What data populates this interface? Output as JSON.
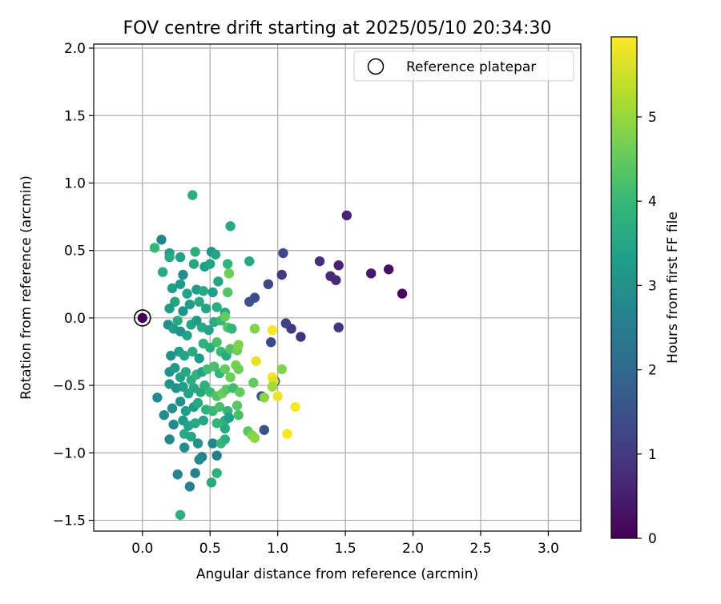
{
  "chart_data": {
    "type": "scatter",
    "title": "FOV centre drift starting at 2025/05/10 20:34:30",
    "xlabel": "Angular distance from reference (arcmin)",
    "ylabel": "Rotation from reference (arcmin)",
    "xlim": [
      -0.36,
      3.24
    ],
    "ylim": [
      -1.58,
      2.03
    ],
    "xticks": [
      0.0,
      0.5,
      1.0,
      1.5,
      2.0,
      2.5,
      3.0
    ],
    "xtick_labels": [
      "0.0",
      "0.5",
      "1.0",
      "1.5",
      "2.0",
      "2.5",
      "3.0"
    ],
    "yticks": [
      2.0,
      1.5,
      1.0,
      0.5,
      0.0,
      -0.5,
      -1.0,
      -1.5
    ],
    "ytick_labels": [
      "2.0",
      "1.5",
      "1.0",
      "0.5",
      "0.0",
      "−0.5",
      "−1.0",
      "−1.5"
    ],
    "grid": true,
    "legend": {
      "placement": "top-right",
      "entries": [
        "Reference platepar"
      ]
    },
    "reference_point": {
      "x": 0.0,
      "y": 0.0
    },
    "colorbar": {
      "label": "Hours from first FF file",
      "range": [
        0,
        5.95
      ],
      "ticks": [
        0,
        1,
        2,
        3,
        4,
        5
      ],
      "tick_labels": [
        "0",
        "1",
        "2",
        "3",
        "4",
        "5"
      ],
      "colormap": "viridis",
      "stops": [
        "#440154",
        "#482878",
        "#3e4a89",
        "#31688e",
        "#26828e",
        "#1f9e89",
        "#35b779",
        "#6ece58",
        "#b5de2b",
        "#fde725"
      ]
    },
    "colors": {
      "grid": "#b0b0b0",
      "axes": "#000000",
      "marker_edge": "#000000"
    },
    "series": [
      {
        "points": [
          [
            0.0,
            0.0,
            0.0
          ],
          [
            1.92,
            0.18,
            0.1
          ],
          [
            1.82,
            0.36,
            0.3
          ],
          [
            1.69,
            0.33,
            0.4
          ],
          [
            1.51,
            0.76,
            0.6
          ],
          [
            1.45,
            0.39,
            0.6
          ],
          [
            1.43,
            0.28,
            0.7
          ],
          [
            1.39,
            0.31,
            0.7
          ],
          [
            1.31,
            0.42,
            0.8
          ],
          [
            1.45,
            -0.07,
            0.9
          ],
          [
            1.17,
            -0.14,
            0.9
          ],
          [
            1.1,
            -0.08,
            1.0
          ],
          [
            1.06,
            -0.04,
            1.1
          ],
          [
            1.03,
            0.32,
            1.0
          ],
          [
            1.04,
            0.48,
            1.3
          ],
          [
            0.95,
            -0.18,
            1.3
          ],
          [
            0.93,
            0.25,
            1.3
          ],
          [
            0.83,
            0.15,
            1.4
          ],
          [
            0.79,
            0.12,
            1.5
          ],
          [
            0.9,
            -0.83,
            1.5
          ],
          [
            0.88,
            -0.58,
            1.6
          ],
          [
            0.98,
            -0.47,
            1.5
          ],
          [
            0.65,
            0.68,
            3.6
          ],
          [
            0.37,
            0.91,
            3.7
          ],
          [
            0.14,
            0.58,
            2.7
          ],
          [
            0.09,
            0.52,
            4.0
          ],
          [
            0.2,
            0.48,
            3.3
          ],
          [
            0.2,
            0.45,
            3.6
          ],
          [
            0.28,
            0.45,
            3.3
          ],
          [
            0.39,
            0.49,
            3.7
          ],
          [
            0.51,
            0.49,
            3.1
          ],
          [
            0.54,
            0.47,
            3.5
          ],
          [
            0.15,
            0.34,
            3.6
          ],
          [
            0.3,
            0.32,
            2.9
          ],
          [
            0.38,
            0.4,
            3.5
          ],
          [
            0.46,
            0.38,
            3.3
          ],
          [
            0.5,
            0.4,
            3.4
          ],
          [
            0.63,
            0.4,
            3.8
          ],
          [
            0.64,
            0.33,
            4.6
          ],
          [
            0.79,
            0.42,
            3.6
          ],
          [
            0.22,
            0.22,
            3.3
          ],
          [
            0.28,
            0.25,
            3.2
          ],
          [
            0.33,
            0.18,
            3.4
          ],
          [
            0.4,
            0.21,
            3.2
          ],
          [
            0.45,
            0.2,
            3.6
          ],
          [
            0.52,
            0.19,
            3.3
          ],
          [
            0.56,
            0.27,
            3.5
          ],
          [
            0.63,
            0.19,
            4.3
          ],
          [
            0.24,
            0.12,
            3.5
          ],
          [
            0.3,
            0.05,
            3.1
          ],
          [
            0.35,
            0.1,
            3.3
          ],
          [
            0.42,
            0.12,
            3.6
          ],
          [
            0.47,
            0.07,
            3.5
          ],
          [
            0.55,
            0.08,
            3.7
          ],
          [
            0.61,
            0.04,
            3.5
          ],
          [
            0.2,
            0.07,
            3.2
          ],
          [
            0.26,
            -0.02,
            3.6
          ],
          [
            0.19,
            -0.05,
            2.9
          ],
          [
            0.23,
            -0.08,
            3.3
          ],
          [
            0.28,
            -0.1,
            3.0
          ],
          [
            0.33,
            -0.13,
            3.4
          ],
          [
            0.36,
            -0.05,
            3.5
          ],
          [
            0.4,
            -0.02,
            3.2
          ],
          [
            0.44,
            -0.07,
            3.6
          ],
          [
            0.49,
            -0.09,
            3.4
          ],
          [
            0.53,
            -0.03,
            3.7
          ],
          [
            0.58,
            -0.02,
            4.0
          ],
          [
            0.61,
            0.01,
            4.5
          ],
          [
            0.63,
            -0.07,
            4.3
          ],
          [
            0.66,
            -0.08,
            3.9
          ],
          [
            0.21,
            -0.28,
            3.0
          ],
          [
            0.27,
            -0.25,
            3.3
          ],
          [
            0.31,
            -0.28,
            3.5
          ],
          [
            0.37,
            -0.25,
            3.6
          ],
          [
            0.42,
            -0.3,
            3.2
          ],
          [
            0.45,
            -0.19,
            3.8
          ],
          [
            0.5,
            -0.22,
            3.7
          ],
          [
            0.55,
            -0.18,
            4.2
          ],
          [
            0.58,
            -0.25,
            4.0
          ],
          [
            0.62,
            -0.28,
            3.6
          ],
          [
            0.65,
            -0.23,
            4.3
          ],
          [
            0.7,
            -0.24,
            4.6
          ],
          [
            0.71,
            -0.2,
            4.8
          ],
          [
            0.2,
            -0.4,
            3.0
          ],
          [
            0.24,
            -0.37,
            3.2
          ],
          [
            0.28,
            -0.44,
            3.4
          ],
          [
            0.32,
            -0.4,
            3.6
          ],
          [
            0.36,
            -0.46,
            3.7
          ],
          [
            0.4,
            -0.42,
            3.9
          ],
          [
            0.44,
            -0.4,
            3.4
          ],
          [
            0.48,
            -0.38,
            4.1
          ],
          [
            0.53,
            -0.36,
            4.2
          ],
          [
            0.57,
            -0.41,
            3.9
          ],
          [
            0.61,
            -0.38,
            4.5
          ],
          [
            0.65,
            -0.44,
            4.6
          ],
          [
            0.69,
            -0.35,
            4.7
          ],
          [
            0.71,
            -0.38,
            4.6
          ],
          [
            0.2,
            -0.49,
            3.1
          ],
          [
            0.25,
            -0.52,
            3.0
          ],
          [
            0.3,
            -0.51,
            3.3
          ],
          [
            0.34,
            -0.56,
            3.4
          ],
          [
            0.38,
            -0.52,
            3.6
          ],
          [
            0.43,
            -0.55,
            3.5
          ],
          [
            0.46,
            -0.5,
            3.8
          ],
          [
            0.5,
            -0.55,
            4.0
          ],
          [
            0.55,
            -0.58,
            4.3
          ],
          [
            0.59,
            -0.56,
            4.6
          ],
          [
            0.62,
            -0.53,
            4.4
          ],
          [
            0.67,
            -0.52,
            4.1
          ],
          [
            0.72,
            -0.55,
            4.5
          ],
          [
            0.11,
            -0.59,
            2.8
          ],
          [
            0.22,
            -0.67,
            2.9
          ],
          [
            0.28,
            -0.62,
            3.0
          ],
          [
            0.32,
            -0.69,
            3.3
          ],
          [
            0.38,
            -0.66,
            3.2
          ],
          [
            0.41,
            -0.63,
            3.6
          ],
          [
            0.47,
            -0.68,
            3.8
          ],
          [
            0.52,
            -0.69,
            4.0
          ],
          [
            0.57,
            -0.66,
            4.2
          ],
          [
            0.63,
            -0.69,
            3.9
          ],
          [
            0.7,
            -0.65,
            4.4
          ],
          [
            0.16,
            -0.72,
            2.9
          ],
          [
            0.23,
            -0.79,
            2.8
          ],
          [
            0.3,
            -0.76,
            3.2
          ],
          [
            0.34,
            -0.8,
            3.4
          ],
          [
            0.39,
            -0.78,
            3.6
          ],
          [
            0.45,
            -0.76,
            3.5
          ],
          [
            0.55,
            -0.78,
            3.9
          ],
          [
            0.61,
            -0.76,
            3.8
          ],
          [
            0.64,
            -0.74,
            3.3
          ],
          [
            0.71,
            -0.72,
            4.2
          ],
          [
            0.2,
            -0.9,
            2.8
          ],
          [
            0.31,
            -0.86,
            3.6
          ],
          [
            0.36,
            -0.88,
            3.5
          ],
          [
            0.41,
            -0.93,
            3.0
          ],
          [
            0.52,
            -0.93,
            2.7
          ],
          [
            0.58,
            -0.93,
            4.0
          ],
          [
            0.61,
            -0.9,
            3.8
          ],
          [
            0.26,
            -1.16,
            2.7
          ],
          [
            0.35,
            -1.25,
            2.6
          ],
          [
            0.39,
            -1.15,
            2.6
          ],
          [
            0.44,
            -1.03,
            2.5
          ],
          [
            0.55,
            -1.02,
            2.5
          ],
          [
            0.51,
            -1.22,
            3.6
          ],
          [
            0.55,
            -1.15,
            3.8
          ],
          [
            0.28,
            -1.46,
            3.8
          ],
          [
            0.42,
            -1.05,
            2.8
          ],
          [
            0.31,
            -0.96,
            2.9
          ],
          [
            0.61,
            -0.82,
            3.6
          ],
          [
            0.83,
            -0.08,
            4.8
          ],
          [
            0.96,
            -0.09,
            5.9
          ],
          [
            0.84,
            -0.32,
            5.7
          ],
          [
            1.03,
            -0.38,
            4.8
          ],
          [
            0.96,
            -0.44,
            5.9
          ],
          [
            0.97,
            -0.47,
            5.6
          ],
          [
            0.82,
            -0.48,
            4.5
          ],
          [
            0.96,
            -0.51,
            5.1
          ],
          [
            1.0,
            -0.58,
            5.8
          ],
          [
            0.9,
            -0.59,
            4.9
          ],
          [
            1.13,
            -0.66,
            5.9
          ],
          [
            0.78,
            -0.84,
            4.4
          ],
          [
            0.81,
            -0.87,
            4.8
          ],
          [
            0.83,
            -0.89,
            4.9
          ],
          [
            1.07,
            -0.86,
            5.9
          ]
        ]
      }
    ]
  }
}
